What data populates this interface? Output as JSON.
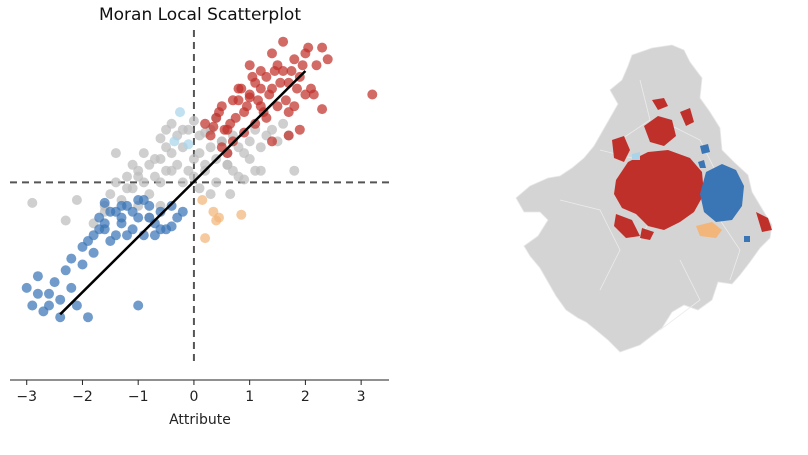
{
  "chart_data": [
    {
      "type": "scatter",
      "title": "Moran Local Scatterplot",
      "xlabel": "Attribute",
      "ylabel": "",
      "xlim": [
        -3.3,
        3.5
      ],
      "ylim": [
        -3.2,
        2.6
      ],
      "xticks": [
        -3,
        -2,
        -1,
        0,
        1,
        2,
        3
      ],
      "xtick_labels": [
        "−3",
        "−2",
        "−1",
        "0",
        "1",
        "2",
        "3"
      ],
      "grid": false,
      "reference_lines": {
        "vertical_x": 0,
        "horizontal_y": 0,
        "style": "dashed"
      },
      "regression_line": {
        "x": [
          -2.4,
          2.0
        ],
        "y": [
          -2.25,
          1.9
        ]
      },
      "colors": {
        "hot_spot": "#c0302b",
        "cold_spot": "#3a75b5",
        "doughnut": "#f2b57a",
        "diamond": "#a9d4ea",
        "not_significant": "#bdbdbd",
        "fit_line": "#000000",
        "ref_line": "#555555"
      },
      "series": [
        {
          "category": "hot_spot",
          "color": "#c0302b",
          "x": [
            0.2,
            0.4,
            0.5,
            0.6,
            0.7,
            0.8,
            0.9,
            1.0,
            1.1,
            1.2,
            1.3,
            1.4,
            1.5,
            1.6,
            1.7,
            1.8,
            1.9,
            2.0,
            2.1,
            2.2,
            2.3,
            2.4,
            0.3,
            0.55,
            0.75,
            0.95,
            1.15,
            1.35,
            1.55,
            1.75,
            1.95,
            2.15,
            0.45,
            0.65,
            0.85,
            1.05,
            1.25,
            1.45,
            1.65,
            1.85,
            2.05,
            0.5,
            0.7,
            0.9,
            1.1,
            1.3,
            1.5,
            1.7,
            1.0,
            1.2,
            1.4,
            1.6,
            1.8,
            0.8,
            1.0,
            1.2,
            3.2,
            2.3,
            2.0,
            1.7,
            1.4,
            0.6,
            0.35,
            1.9
          ],
          "y": [
            1.0,
            1.1,
            1.3,
            0.9,
            1.4,
            1.6,
            1.2,
            1.5,
            1.7,
            1.3,
            1.8,
            1.6,
            2.0,
            1.9,
            1.7,
            2.1,
            1.8,
            2.2,
            1.6,
            2.0,
            2.3,
            2.1,
            0.8,
            0.9,
            1.1,
            1.3,
            1.4,
            1.5,
            1.7,
            1.9,
            2.0,
            1.5,
            1.2,
            1.0,
            1.6,
            1.8,
            1.2,
            1.9,
            1.4,
            1.6,
            2.3,
            0.6,
            0.7,
            0.85,
            1.0,
            1.1,
            1.3,
            1.2,
            2.0,
            1.9,
            2.2,
            2.4,
            1.3,
            1.4,
            1.45,
            1.6,
            1.5,
            1.25,
            1.5,
            0.8,
            0.7,
            0.5,
            0.95,
            0.9
          ]
        },
        {
          "category": "cold_spot",
          "color": "#3a75b5",
          "x": [
            -3.0,
            -2.9,
            -2.8,
            -2.7,
            -2.6,
            -2.5,
            -2.4,
            -2.3,
            -2.2,
            -2.1,
            -2.0,
            -1.9,
            -1.8,
            -1.7,
            -1.6,
            -1.5,
            -1.4,
            -1.3,
            -1.2,
            -1.1,
            -1.0,
            -0.9,
            -0.8,
            -0.7,
            -0.6,
            -0.5,
            -0.4,
            -0.3,
            -2.2,
            -2.0,
            -1.8,
            -1.6,
            -1.4,
            -1.2,
            -1.0,
            -0.8,
            -0.6,
            -1.5,
            -1.3,
            -1.1,
            -0.9,
            -0.7,
            -1.7,
            -1.9,
            -2.4,
            -2.6,
            -2.8,
            -1.0,
            -0.2,
            -0.4,
            -1.6,
            -1.3
          ],
          "y": [
            -1.8,
            -2.1,
            -1.6,
            -2.2,
            -1.9,
            -1.7,
            -2.0,
            -1.5,
            -1.8,
            -2.1,
            -1.4,
            -1.0,
            -0.9,
            -0.6,
            -0.8,
            -0.5,
            -0.9,
            -0.7,
            -0.4,
            -0.8,
            -0.6,
            -0.9,
            -0.4,
            -0.7,
            -0.5,
            -0.8,
            -0.4,
            -0.6,
            -1.3,
            -1.1,
            -1.2,
            -0.7,
            -0.5,
            -0.9,
            -0.3,
            -0.6,
            -0.8,
            -1.0,
            -0.4,
            -0.5,
            -0.3,
            -0.9,
            -0.8,
            -2.3,
            -2.3,
            -2.1,
            -1.9,
            -2.1,
            -0.5,
            -0.75,
            -0.35,
            -0.6
          ]
        },
        {
          "category": "doughnut",
          "color": "#f2b57a",
          "x": [
            0.15,
            0.35,
            0.45,
            0.85,
            0.2,
            0.4
          ],
          "y": [
            -0.3,
            -0.5,
            -0.6,
            -0.55,
            -0.95,
            -0.65
          ]
        },
        {
          "category": "diamond",
          "color": "#a9d4ea",
          "x": [
            -0.25,
            -0.1,
            -0.35
          ],
          "y": [
            1.2,
            0.65,
            0.7
          ]
        },
        {
          "category": "not_significant",
          "color": "#bdbdbd",
          "x": [
            -2.9,
            -2.3,
            -2.1,
            -1.8,
            -1.6,
            -1.5,
            -1.4,
            -1.3,
            -1.2,
            -1.1,
            -1.0,
            -0.9,
            -0.8,
            -0.7,
            -0.6,
            -0.5,
            -0.4,
            -0.3,
            -0.2,
            -0.1,
            0.0,
            0.1,
            0.2,
            0.3,
            0.4,
            0.5,
            0.6,
            0.7,
            0.8,
            0.9,
            1.0,
            1.1,
            1.2,
            1.3,
            1.4,
            1.5,
            1.6,
            1.7,
            1.8,
            -1.2,
            -1.0,
            -0.8,
            -0.6,
            -0.4,
            -0.2,
            0.0,
            0.2,
            0.4,
            0.6,
            0.8,
            1.0,
            1.2,
            -1.1,
            -0.9,
            -0.7,
            -0.5,
            -0.3,
            -0.1,
            0.1,
            0.3,
            0.5,
            0.7,
            0.9,
            -0.6,
            -0.4,
            -0.2,
            0.0,
            0.2,
            0.4,
            0.6,
            -1.4,
            -1.6,
            -0.8,
            -0.5,
            0.1,
            0.3,
            -1.0,
            -0.6,
            0.65,
            1.1
          ],
          "y": [
            -0.35,
            -0.65,
            -0.3,
            -0.7,
            -0.4,
            -0.2,
            0.0,
            -0.3,
            0.1,
            -0.1,
            0.2,
            0.0,
            0.3,
            0.1,
            0.4,
            0.2,
            0.5,
            0.3,
            0.6,
            0.2,
            0.4,
            0.5,
            0.3,
            0.6,
            0.4,
            0.7,
            0.5,
            0.8,
            0.6,
            0.5,
            0.7,
            0.9,
            0.6,
            0.8,
            0.9,
            0.7,
            1.0,
            0.8,
            0.2,
            -0.1,
            0.1,
            -0.2,
            0.0,
            0.2,
            0.0,
            0.1,
            0.2,
            0.0,
            0.3,
            0.1,
            0.4,
            0.2,
            0.3,
            0.5,
            0.4,
            0.6,
            0.8,
            0.9,
            0.8,
            0.9,
            0.7,
            0.2,
            0.05,
            0.75,
            1.0,
            0.9,
            1.05,
            0.85,
            1.1,
            0.3,
            0.5,
            -0.5,
            -0.6,
            0.9,
            -0.1,
            -0.2,
            -0.4,
            -0.4,
            -0.2,
            0.2
          ]
        }
      ]
    }
  ]
}
